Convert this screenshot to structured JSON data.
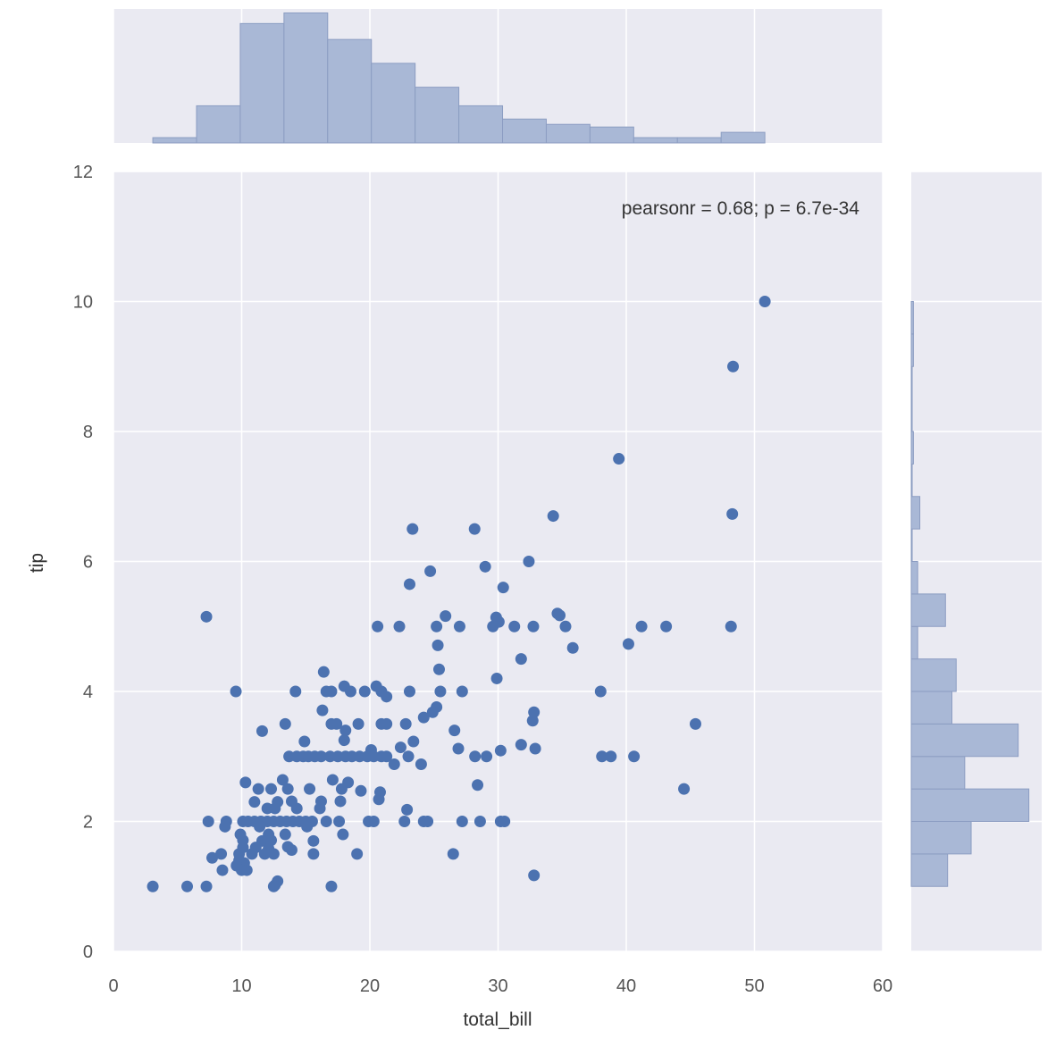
{
  "chart_data": {
    "type": "scatter",
    "title": "",
    "xlabel": "total_bill",
    "ylabel": "tip",
    "xlim": [
      0,
      60
    ],
    "ylim": [
      0,
      12
    ],
    "xticks": [
      "0",
      "10",
      "20",
      "30",
      "40",
      "50",
      "60"
    ],
    "yticks": [
      "0",
      "2",
      "4",
      "6",
      "8",
      "10",
      "12"
    ],
    "annotation": "pearsonr = 0.68; p = 6.7e-34",
    "grid": true,
    "colors": {
      "background": "#EAEAF2",
      "grid": "#FFFFFF",
      "point": "#4C72B0",
      "bar": "#A9B8D6",
      "bar_edge": "#8C9DC2",
      "text": "#555555"
    },
    "points": [
      [
        3.07,
        1.0
      ],
      [
        5.75,
        1.0
      ],
      [
        7.25,
        1.0
      ],
      [
        7.25,
        5.15
      ],
      [
        9.55,
        4.0
      ],
      [
        50.81,
        10.0
      ],
      [
        48.33,
        9.0
      ],
      [
        39.42,
        7.58
      ],
      [
        48.27,
        6.73
      ],
      [
        34.3,
        6.7
      ],
      [
        23.33,
        6.5
      ],
      [
        28.17,
        6.5
      ],
      [
        24.71,
        5.85
      ],
      [
        29.0,
        5.92
      ],
      [
        32.4,
        6.0
      ],
      [
        23.1,
        5.65
      ],
      [
        30.4,
        5.6
      ],
      [
        48.17,
        5.0
      ],
      [
        43.11,
        5.0
      ],
      [
        41.19,
        5.0
      ],
      [
        40.17,
        4.73
      ],
      [
        35.83,
        4.67
      ],
      [
        34.63,
        5.2
      ],
      [
        34.81,
        5.17
      ],
      [
        35.26,
        5.0
      ],
      [
        30.06,
        5.07
      ],
      [
        29.85,
        5.14
      ],
      [
        31.27,
        5.0
      ],
      [
        32.75,
        5.0
      ],
      [
        20.6,
        5.0
      ],
      [
        22.3,
        5.0
      ],
      [
        25.2,
        5.0
      ],
      [
        27.0,
        5.0
      ],
      [
        29.6,
        5.0
      ],
      [
        25.9,
        5.16
      ],
      [
        25.3,
        4.71
      ],
      [
        31.8,
        4.5
      ],
      [
        16.4,
        4.3
      ],
      [
        25.4,
        4.34
      ],
      [
        29.9,
        4.2
      ],
      [
        18.0,
        4.08
      ],
      [
        20.5,
        4.08
      ],
      [
        14.2,
        4.0
      ],
      [
        16.6,
        4.0
      ],
      [
        17.0,
        4.0
      ],
      [
        18.5,
        4.0
      ],
      [
        19.6,
        4.0
      ],
      [
        20.9,
        4.0
      ],
      [
        23.1,
        4.0
      ],
      [
        25.5,
        4.0
      ],
      [
        27.2,
        4.0
      ],
      [
        38.0,
        4.0
      ],
      [
        21.3,
        3.92
      ],
      [
        25.2,
        3.76
      ],
      [
        16.3,
        3.71
      ],
      [
        24.9,
        3.68
      ],
      [
        32.8,
        3.68
      ],
      [
        13.4,
        3.5
      ],
      [
        17.0,
        3.5
      ],
      [
        17.4,
        3.5
      ],
      [
        19.1,
        3.5
      ],
      [
        20.9,
        3.5
      ],
      [
        21.3,
        3.5
      ],
      [
        22.8,
        3.5
      ],
      [
        24.2,
        3.6
      ],
      [
        32.7,
        3.55
      ],
      [
        45.4,
        3.5
      ],
      [
        11.6,
        3.39
      ],
      [
        18.1,
        3.4
      ],
      [
        26.6,
        3.4
      ],
      [
        14.9,
        3.23
      ],
      [
        18.0,
        3.25
      ],
      [
        23.4,
        3.23
      ],
      [
        31.8,
        3.18
      ],
      [
        32.9,
        3.12
      ],
      [
        20.1,
        3.1
      ],
      [
        22.4,
        3.14
      ],
      [
        26.9,
        3.12
      ],
      [
        30.2,
        3.09
      ],
      [
        13.7,
        3.0
      ],
      [
        14.3,
        3.0
      ],
      [
        14.8,
        3.0
      ],
      [
        15.2,
        3.0
      ],
      [
        15.7,
        3.0
      ],
      [
        16.2,
        3.0
      ],
      [
        16.9,
        3.0
      ],
      [
        17.5,
        3.0
      ],
      [
        18.1,
        3.0
      ],
      [
        18.6,
        3.0
      ],
      [
        19.2,
        3.0
      ],
      [
        19.8,
        3.0
      ],
      [
        20.3,
        3.0
      ],
      [
        20.9,
        3.0
      ],
      [
        21.3,
        3.0
      ],
      [
        23.0,
        3.0
      ],
      [
        28.2,
        3.0
      ],
      [
        29.1,
        3.0
      ],
      [
        38.1,
        3.0
      ],
      [
        38.8,
        3.0
      ],
      [
        40.6,
        3.0
      ],
      [
        21.9,
        2.88
      ],
      [
        24.0,
        2.88
      ],
      [
        10.3,
        2.6
      ],
      [
        13.2,
        2.64
      ],
      [
        17.1,
        2.64
      ],
      [
        18.3,
        2.6
      ],
      [
        28.4,
        2.56
      ],
      [
        11.3,
        2.5
      ],
      [
        12.3,
        2.5
      ],
      [
        13.6,
        2.5
      ],
      [
        15.3,
        2.5
      ],
      [
        17.8,
        2.5
      ],
      [
        19.3,
        2.47
      ],
      [
        20.8,
        2.45
      ],
      [
        44.5,
        2.5
      ],
      [
        11.0,
        2.3
      ],
      [
        12.8,
        2.3
      ],
      [
        13.9,
        2.31
      ],
      [
        16.2,
        2.31
      ],
      [
        17.7,
        2.31
      ],
      [
        20.7,
        2.34
      ],
      [
        12.0,
        2.2
      ],
      [
        12.6,
        2.2
      ],
      [
        14.3,
        2.2
      ],
      [
        16.1,
        2.2
      ],
      [
        22.9,
        2.18
      ],
      [
        7.4,
        2.0
      ],
      [
        8.8,
        2.0
      ],
      [
        10.1,
        2.0
      ],
      [
        10.5,
        2.0
      ],
      [
        11.0,
        2.0
      ],
      [
        11.5,
        2.0
      ],
      [
        12.0,
        2.0
      ],
      [
        12.5,
        2.0
      ],
      [
        13.0,
        2.0
      ],
      [
        13.5,
        2.0
      ],
      [
        14.0,
        2.0
      ],
      [
        14.5,
        2.0
      ],
      [
        15.0,
        2.0
      ],
      [
        15.5,
        2.0
      ],
      [
        16.6,
        2.0
      ],
      [
        17.6,
        2.0
      ],
      [
        19.9,
        2.0
      ],
      [
        20.3,
        2.0
      ],
      [
        22.7,
        2.0
      ],
      [
        24.2,
        2.0
      ],
      [
        24.5,
        2.0
      ],
      [
        27.2,
        2.0
      ],
      [
        28.6,
        2.0
      ],
      [
        30.2,
        2.0
      ],
      [
        30.5,
        2.0
      ],
      [
        8.7,
        1.92
      ],
      [
        11.4,
        1.92
      ],
      [
        15.1,
        1.92
      ],
      [
        9.9,
        1.8
      ],
      [
        12.1,
        1.8
      ],
      [
        13.4,
        1.8
      ],
      [
        17.9,
        1.8
      ],
      [
        10.1,
        1.71
      ],
      [
        11.6,
        1.7
      ],
      [
        12.3,
        1.71
      ],
      [
        15.6,
        1.7
      ],
      [
        10.1,
        1.6
      ],
      [
        11.1,
        1.6
      ],
      [
        12.1,
        1.58
      ],
      [
        13.6,
        1.61
      ],
      [
        13.9,
        1.56
      ],
      [
        7.7,
        1.44
      ],
      [
        8.4,
        1.5
      ],
      [
        9.8,
        1.5
      ],
      [
        10.8,
        1.5
      ],
      [
        11.8,
        1.5
      ],
      [
        12.5,
        1.5
      ],
      [
        15.6,
        1.5
      ],
      [
        19.0,
        1.5
      ],
      [
        26.5,
        1.5
      ],
      [
        9.8,
        1.4
      ],
      [
        10.2,
        1.36
      ],
      [
        8.5,
        1.25
      ],
      [
        9.6,
        1.32
      ],
      [
        10.0,
        1.25
      ],
      [
        10.4,
        1.25
      ],
      [
        32.8,
        1.17
      ],
      [
        12.8,
        1.08
      ],
      [
        12.6,
        1.02
      ],
      [
        12.5,
        1.0
      ],
      [
        17.0,
        1.0
      ]
    ],
    "top_histogram": {
      "variable": "total_bill",
      "bin_edges": [
        3.07,
        6.48,
        9.89,
        13.3,
        16.71,
        20.12,
        23.53,
        26.94,
        30.35,
        33.76,
        37.17,
        40.58,
        43.99,
        47.4,
        50.81
      ],
      "counts": [
        2,
        14,
        45,
        49,
        39,
        30,
        21,
        14,
        9,
        7,
        6,
        2,
        2,
        4
      ]
    },
    "right_histogram": {
      "variable": "tip",
      "bin_edges": [
        1.0,
        1.5,
        2.0,
        2.5,
        3.0,
        3.5,
        4.0,
        4.5,
        5.0,
        5.5,
        6.0,
        6.5,
        7.0,
        7.5,
        8.0,
        8.5,
        9.0,
        9.5,
        10.0
      ],
      "counts": [
        17,
        28,
        55,
        25,
        50,
        19,
        21,
        3,
        16,
        3,
        0,
        4,
        0,
        1,
        0,
        0,
        1,
        1
      ]
    }
  }
}
